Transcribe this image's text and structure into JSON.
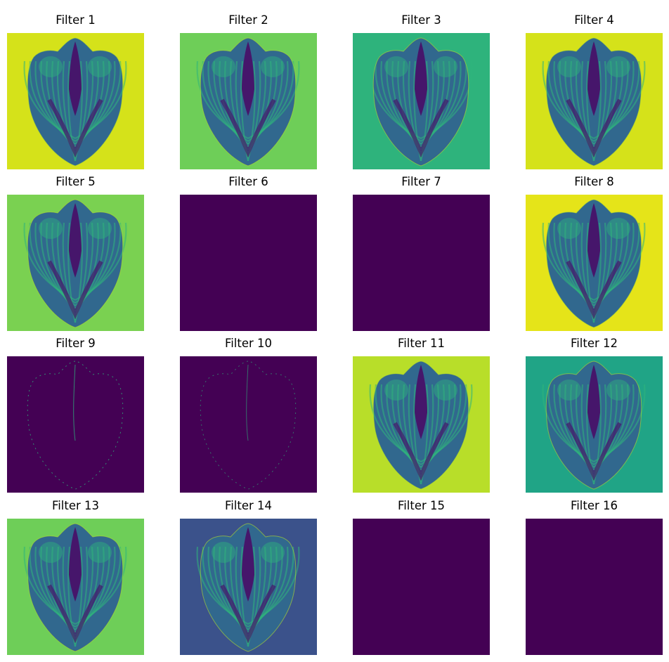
{
  "panels": [
    {
      "title": "Filter 1",
      "background": "#d5e21a",
      "shell_contrast": 1.0,
      "visible_shell": true
    },
    {
      "title": "Filter 2",
      "background": "#6ece58",
      "shell_contrast": 1.0,
      "visible_shell": true
    },
    {
      "title": "Filter 3",
      "background": "#2eb37c",
      "shell_contrast": 1.0,
      "visible_shell": true
    },
    {
      "title": "Filter 4",
      "background": "#d5e21a",
      "shell_contrast": 1.0,
      "visible_shell": true
    },
    {
      "title": "Filter 5",
      "background": "#7ad151",
      "shell_contrast": 1.0,
      "visible_shell": true
    },
    {
      "title": "Filter 6",
      "background": "#440154",
      "shell_contrast": 0.0,
      "visible_shell": false
    },
    {
      "title": "Filter 7",
      "background": "#440154",
      "shell_contrast": 0.0,
      "visible_shell": false
    },
    {
      "title": "Filter 8",
      "background": "#e5e419",
      "shell_contrast": 1.0,
      "visible_shell": true
    },
    {
      "title": "Filter 9",
      "background": "#440154",
      "shell_contrast": 0.25,
      "visible_shell": false
    },
    {
      "title": "Filter 10",
      "background": "#440154",
      "shell_contrast": 0.2,
      "visible_shell": false
    },
    {
      "title": "Filter 11",
      "background": "#b8de29",
      "shell_contrast": 1.0,
      "visible_shell": true
    },
    {
      "title": "Filter 12",
      "background": "#20a486",
      "shell_contrast": 1.0,
      "visible_shell": true
    },
    {
      "title": "Filter 13",
      "background": "#6ece58",
      "shell_contrast": 1.0,
      "visible_shell": true
    },
    {
      "title": "Filter 14",
      "background": "#3b528b",
      "shell_contrast": 1.0,
      "visible_shell": true
    },
    {
      "title": "Filter 15",
      "background": "#440154",
      "shell_contrast": 0.0,
      "visible_shell": false
    },
    {
      "title": "Filter 16",
      "background": "#440154",
      "shell_contrast": 0.0,
      "visible_shell": false
    }
  ],
  "palette": {
    "shell_dark": "#46166b",
    "shell_mid": "#31688e",
    "shell_light": "#2fb47c",
    "edge_highlight": "#b5de2b"
  }
}
